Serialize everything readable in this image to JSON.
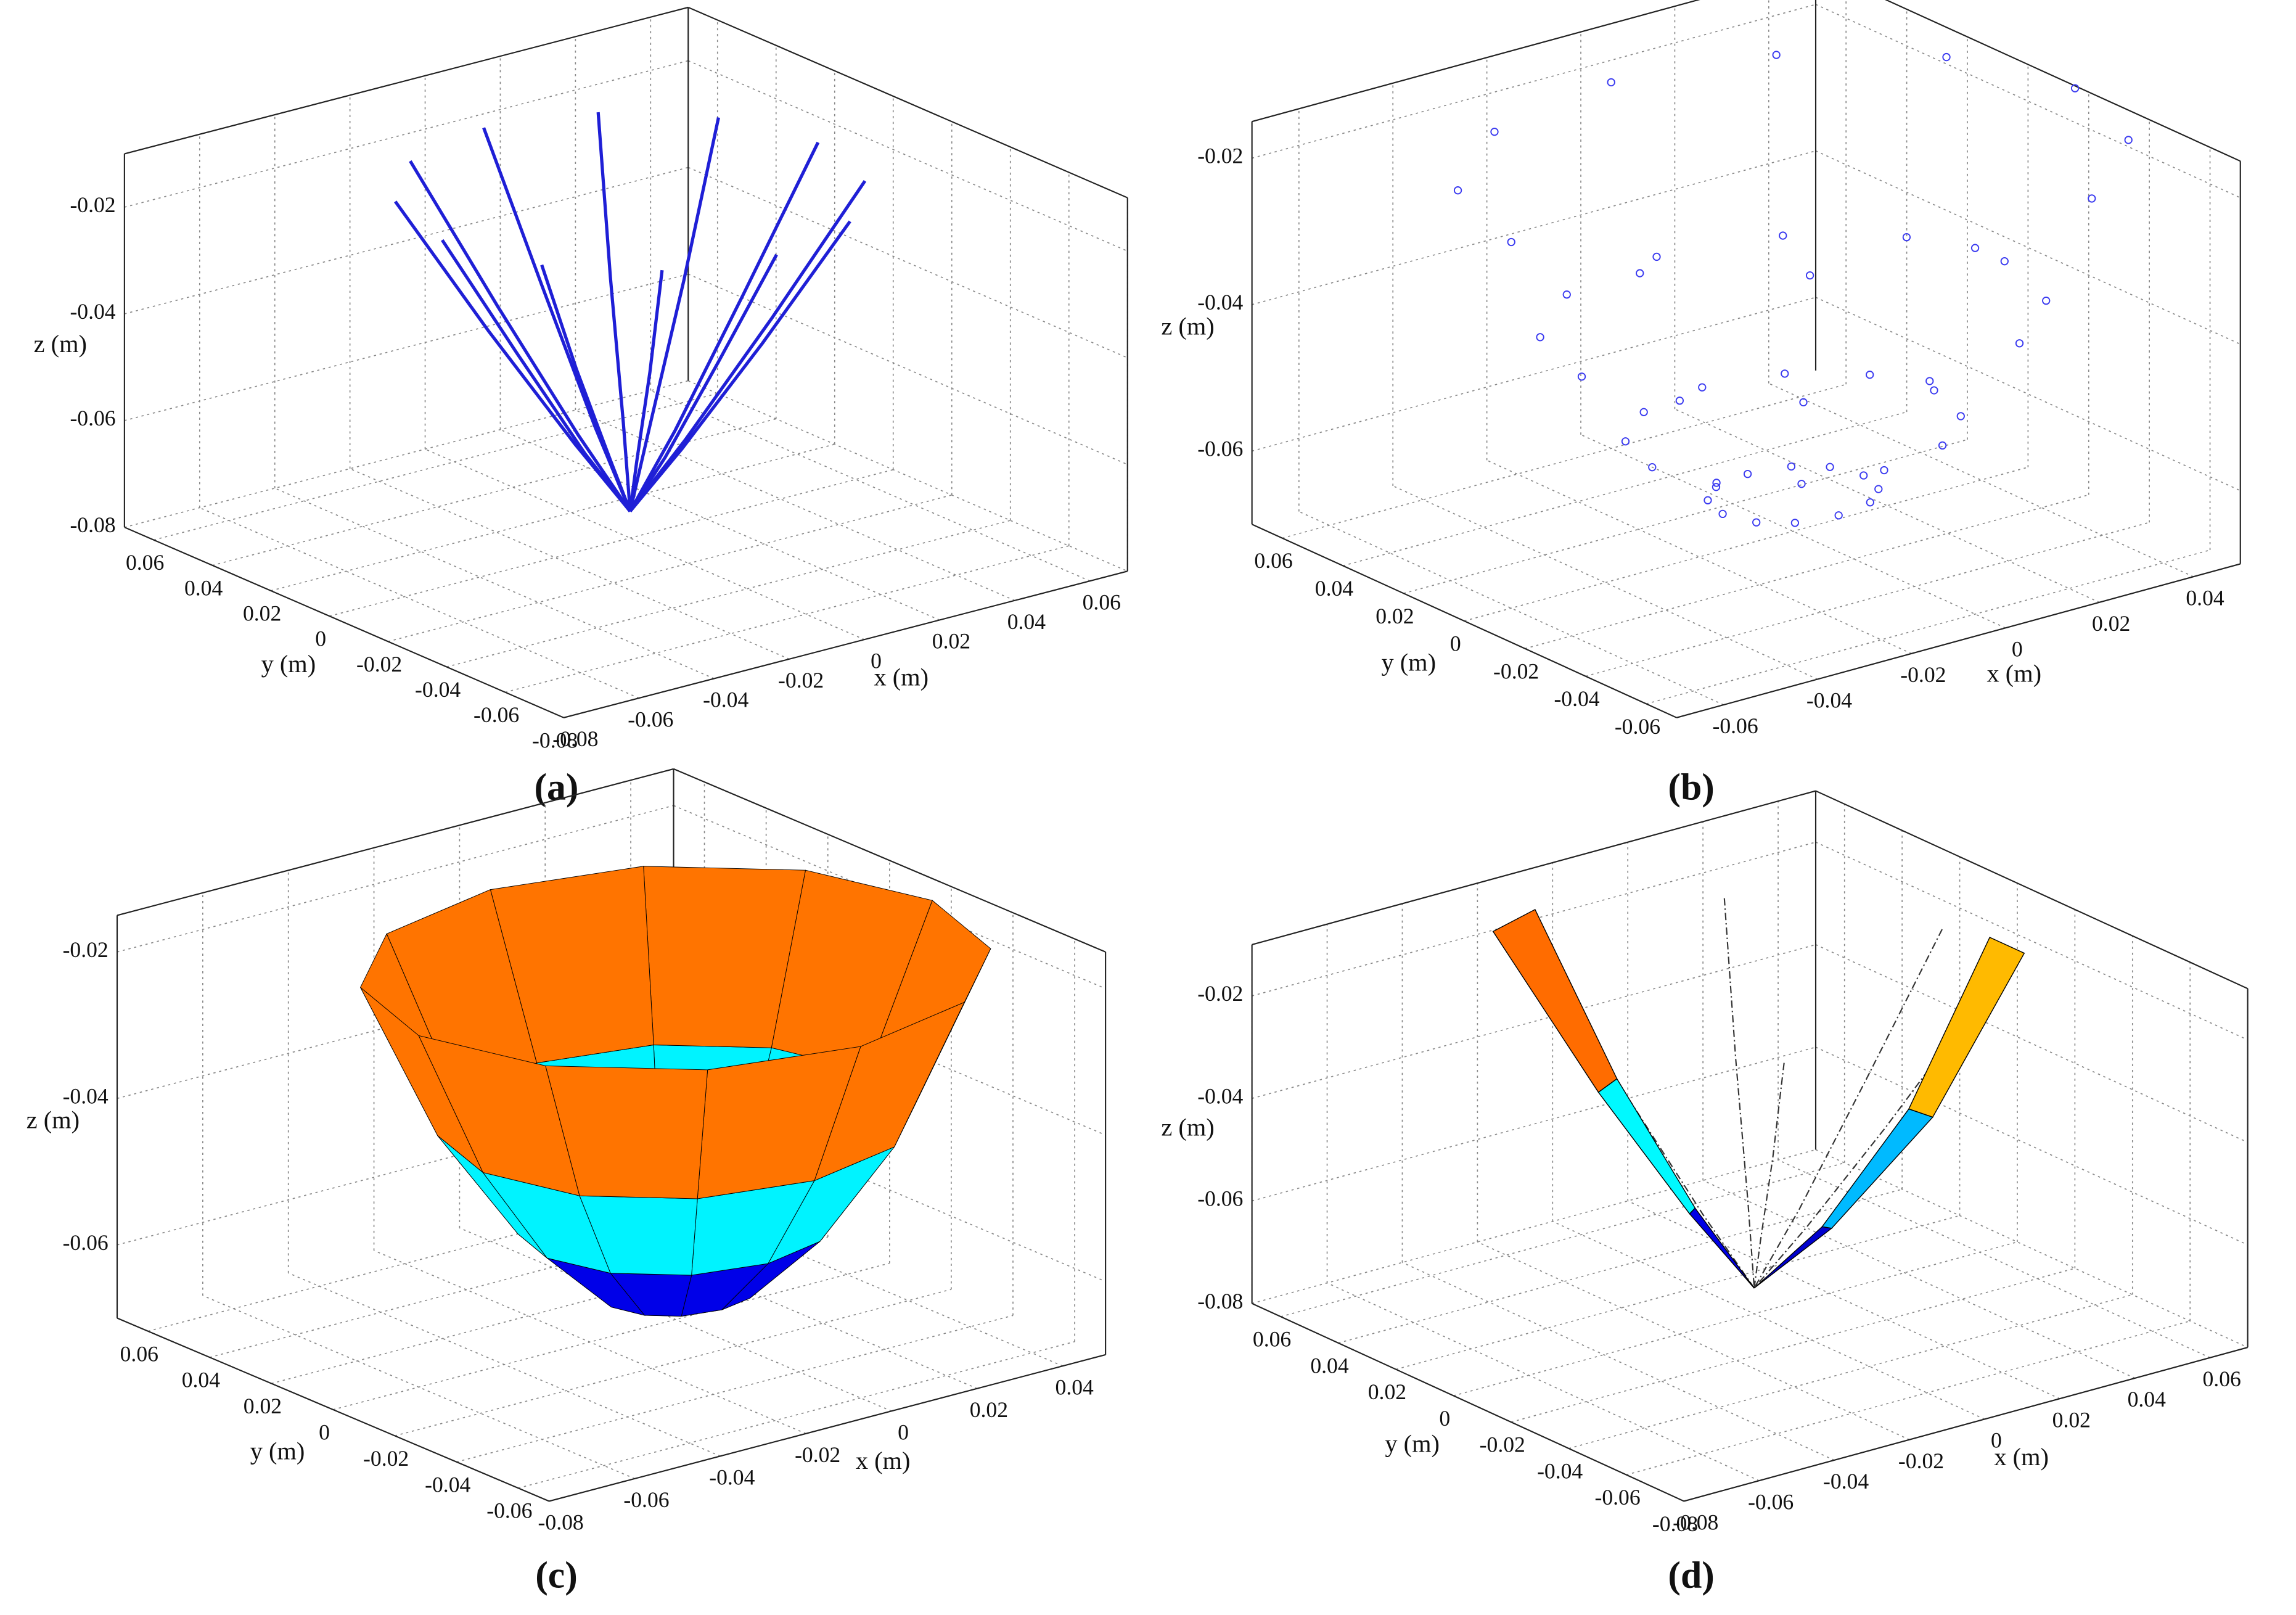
{
  "chart_data": [
    {
      "type": "line3d",
      "panel": "(a)",
      "xlabel": "x (m)",
      "ylabel": "y (m)",
      "zlabel": "z (m)",
      "xlim": [
        -0.08,
        0.07
      ],
      "ylim": [
        -0.08,
        0.07
      ],
      "zlim": [
        -0.08,
        -0.01
      ],
      "xticks": [
        -0.08,
        -0.06,
        -0.04,
        -0.02,
        0,
        0.02,
        0.04,
        0.06
      ],
      "yticks": [
        -0.08,
        -0.06,
        -0.04,
        -0.02,
        0,
        0.02,
        0.04,
        0.06
      ],
      "zticks": [
        -0.08,
        -0.06,
        -0.04,
        -0.02
      ],
      "grid": true,
      "color": "#1f1fd6",
      "series": [
        {
          "x": [
            0.05,
            0.03,
            0.012,
            0
          ],
          "y": [
            0,
            0,
            0,
            0
          ],
          "z": [
            -0.015,
            -0.04,
            -0.062,
            -0.075
          ]
        },
        {
          "x": [
            0.043,
            0.026,
            0.01,
            0
          ],
          "y": [
            0.025,
            0.015,
            0.006,
            0
          ],
          "z": [
            -0.015,
            -0.04,
            -0.062,
            -0.075
          ]
        },
        {
          "x": [
            0.025,
            0.015,
            0.006,
            0
          ],
          "y": [
            0.043,
            0.026,
            0.01,
            0
          ],
          "z": [
            -0.015,
            -0.04,
            -0.062,
            -0.075
          ]
        },
        {
          "x": [
            0,
            0,
            0,
            0
          ],
          "y": [
            0.05,
            0.03,
            0.012,
            0
          ],
          "z": [
            -0.015,
            -0.04,
            -0.062,
            -0.075
          ]
        },
        {
          "x": [
            -0.025,
            -0.015,
            -0.006,
            0
          ],
          "y": [
            0.043,
            0.026,
            0.01,
            0
          ],
          "z": [
            -0.015,
            -0.04,
            -0.062,
            -0.075
          ]
        },
        {
          "x": [
            -0.043,
            -0.026,
            -0.01,
            0
          ],
          "y": [
            0.025,
            0.015,
            0.006,
            0
          ],
          "z": [
            -0.015,
            -0.04,
            -0.062,
            -0.075
          ]
        },
        {
          "x": [
            -0.05,
            -0.03,
            -0.012,
            0
          ],
          "y": [
            0,
            0,
            0,
            0
          ],
          "z": [
            -0.015,
            -0.04,
            -0.062,
            -0.075
          ]
        },
        {
          "x": [
            -0.043,
            -0.026,
            -0.01,
            0
          ],
          "y": [
            -0.025,
            -0.015,
            -0.006,
            0
          ],
          "z": [
            -0.015,
            -0.04,
            -0.062,
            -0.075
          ]
        },
        {
          "x": [
            -0.025,
            -0.015,
            -0.006,
            0
          ],
          "y": [
            -0.043,
            -0.026,
            -0.01,
            0
          ],
          "z": [
            -0.015,
            -0.04,
            -0.062,
            -0.075
          ]
        },
        {
          "x": [
            0,
            0,
            0,
            0
          ],
          "y": [
            -0.05,
            -0.03,
            -0.012,
            0
          ],
          "z": [
            -0.015,
            -0.04,
            -0.062,
            -0.075
          ]
        },
        {
          "x": [
            0.025,
            0.015,
            0.006,
            0
          ],
          "y": [
            -0.043,
            -0.026,
            -0.01,
            0
          ],
          "z": [
            -0.015,
            -0.04,
            -0.062,
            -0.075
          ]
        },
        {
          "x": [
            0.043,
            0.026,
            0.01,
            0
          ],
          "y": [
            -0.025,
            -0.015,
            -0.006,
            0
          ],
          "z": [
            -0.015,
            -0.04,
            -0.062,
            -0.075
          ]
        }
      ]
    },
    {
      "type": "scatter3d",
      "panel": "(b)",
      "xlabel": "x (m)",
      "ylabel": "y (m)",
      "zlabel": "z (m)",
      "xlim": [
        -0.07,
        0.05
      ],
      "ylim": [
        -0.07,
        0.07
      ],
      "zlim": [
        -0.07,
        -0.015
      ],
      "xticks": [
        -0.06,
        -0.04,
        -0.02,
        0,
        0.02,
        0.04
      ],
      "yticks": [
        -0.06,
        -0.04,
        -0.02,
        0,
        0.02,
        0.04,
        0.06
      ],
      "zticks": [
        -0.06,
        -0.04,
        -0.02
      ],
      "grid": true,
      "color": "#3a3af0",
      "series": [
        {
          "x": [
            0.06,
            0.045,
            0.03,
            0.015
          ],
          "y": [
            0,
            0,
            0,
            0
          ],
          "z": [
            -0.02,
            -0.041,
            -0.056,
            -0.065
          ]
        },
        {
          "x": [
            0.052,
            0.039,
            0.026,
            0.013
          ],
          "y": [
            0.03,
            0.023,
            0.015,
            0.008
          ],
          "z": [
            -0.02,
            -0.041,
            -0.056,
            -0.065
          ]
        },
        {
          "x": [
            0.03,
            0.023,
            0.015,
            0.008
          ],
          "y": [
            0.052,
            0.039,
            0.026,
            0.013
          ],
          "z": [
            -0.02,
            -0.041,
            -0.056,
            -0.065
          ]
        },
        {
          "x": [
            0,
            0,
            0,
            0
          ],
          "y": [
            0.06,
            0.045,
            0.03,
            0.015
          ],
          "z": [
            -0.02,
            -0.041,
            -0.056,
            -0.065
          ]
        },
        {
          "x": [
            -0.03,
            -0.023,
            -0.015,
            -0.008
          ],
          "y": [
            0.052,
            0.039,
            0.026,
            0.013
          ],
          "z": [
            -0.02,
            -0.041,
            -0.056,
            -0.065
          ]
        },
        {
          "x": [
            -0.052,
            -0.039,
            -0.026,
            -0.013
          ],
          "y": [
            0.03,
            0.023,
            0.015,
            0.008
          ],
          "z": [
            -0.02,
            -0.041,
            -0.056,
            -0.065
          ]
        },
        {
          "x": [
            -0.06,
            -0.045,
            -0.03,
            -0.015
          ],
          "y": [
            0,
            0,
            0,
            0
          ],
          "z": [
            -0.02,
            -0.041,
            -0.056,
            -0.065
          ]
        },
        {
          "x": [
            -0.052,
            -0.039,
            -0.026,
            -0.013
          ],
          "y": [
            -0.03,
            -0.023,
            -0.015,
            -0.008
          ],
          "z": [
            -0.02,
            -0.041,
            -0.056,
            -0.065
          ]
        },
        {
          "x": [
            -0.03,
            -0.023,
            -0.015,
            -0.008
          ],
          "y": [
            -0.052,
            -0.039,
            -0.026,
            -0.013
          ],
          "z": [
            -0.02,
            -0.041,
            -0.056,
            -0.065
          ]
        },
        {
          "x": [
            0,
            0,
            0,
            0
          ],
          "y": [
            -0.06,
            -0.045,
            -0.03,
            -0.015
          ],
          "z": [
            -0.02,
            -0.041,
            -0.056,
            -0.065
          ]
        },
        {
          "x": [
            0.03,
            0.023,
            0.015,
            0.008
          ],
          "y": [
            -0.052,
            -0.039,
            -0.026,
            -0.013
          ],
          "z": [
            -0.02,
            -0.041,
            -0.056,
            -0.065
          ]
        },
        {
          "x": [
            0.052,
            0.039,
            0.026,
            0.013
          ],
          "y": [
            -0.03,
            -0.023,
            -0.015,
            -0.008
          ],
          "z": [
            -0.02,
            -0.041,
            -0.056,
            -0.065
          ]
        }
      ]
    },
    {
      "type": "surface3d",
      "panel": "(c)",
      "xlabel": "x (m)",
      "ylabel": "y (m)",
      "zlabel": "z (m)",
      "xlim": [
        -0.08,
        0.05
      ],
      "ylim": [
        -0.07,
        0.07
      ],
      "zlim": [
        -0.07,
        -0.015
      ],
      "xticks": [
        -0.08,
        -0.06,
        -0.04,
        -0.02,
        0,
        0.02,
        0.04
      ],
      "yticks": [
        -0.06,
        -0.04,
        -0.02,
        0,
        0.02,
        0.04,
        0.06
      ],
      "zticks": [
        -0.06,
        -0.04,
        -0.02
      ],
      "grid": true,
      "x": [
        [
          0.06,
          0.052,
          0.03,
          0,
          -0.03,
          -0.052,
          -0.06,
          -0.052,
          -0.03,
          0,
          0.03,
          0.052
        ],
        [
          0.045,
          0.039,
          0.023,
          0,
          -0.023,
          -0.039,
          -0.045,
          -0.039,
          -0.023,
          0,
          0.023,
          0.039
        ],
        [
          0.03,
          0.026,
          0.015,
          0,
          -0.015,
          -0.026,
          -0.03,
          -0.026,
          -0.015,
          0,
          0.015,
          0.026
        ],
        [
          0.015,
          0.013,
          0.008,
          0,
          -0.008,
          -0.013,
          -0.015,
          -0.013,
          -0.008,
          0,
          0.008,
          0.013
        ]
      ],
      "y": [
        [
          0,
          0.03,
          0.052,
          0.06,
          0.052,
          0.03,
          0,
          -0.03,
          -0.052,
          -0.06,
          -0.052,
          -0.03
        ],
        [
          0,
          0.023,
          0.039,
          0.045,
          0.039,
          0.023,
          0,
          -0.023,
          -0.039,
          -0.045,
          -0.039,
          -0.023
        ],
        [
          0,
          0.015,
          0.026,
          0.03,
          0.026,
          0.015,
          0,
          -0.015,
          -0.026,
          -0.03,
          -0.026,
          -0.015
        ],
        [
          0,
          0.008,
          0.013,
          0.015,
          0.013,
          0.008,
          0,
          -0.008,
          -0.013,
          -0.015,
          -0.013,
          -0.008
        ]
      ],
      "z": [
        [
          -0.022,
          -0.022,
          -0.022,
          -0.022,
          -0.022,
          -0.022,
          -0.022,
          -0.022,
          -0.022,
          -0.022,
          -0.022,
          -0.022
        ],
        [
          -0.043,
          -0.043,
          -0.043,
          -0.043,
          -0.043,
          -0.043,
          -0.043,
          -0.043,
          -0.043,
          -0.043,
          -0.043,
          -0.043
        ],
        [
          -0.057,
          -0.057,
          -0.057,
          -0.057,
          -0.057,
          -0.057,
          -0.057,
          -0.057,
          -0.057,
          -0.057,
          -0.057,
          -0.057
        ],
        [
          -0.066,
          -0.066,
          -0.066,
          -0.066,
          -0.066,
          -0.066,
          -0.066,
          -0.066,
          -0.066,
          -0.066,
          -0.066,
          -0.066
        ]
      ]
    },
    {
      "type": "ribbon3d",
      "panel": "(d)",
      "xlabel": "x (m)",
      "ylabel": "y (m)",
      "zlabel": "z (m)",
      "xlim": [
        -0.08,
        0.07
      ],
      "ylim": [
        -0.08,
        0.07
      ],
      "zlim": [
        -0.08,
        -0.01
      ],
      "xticks": [
        -0.08,
        -0.06,
        -0.04,
        -0.02,
        0,
        0.02,
        0.04,
        0.06
      ],
      "yticks": [
        -0.08,
        -0.06,
        -0.04,
        -0.02,
        0,
        0.02,
        0.04,
        0.06
      ],
      "zticks": [
        -0.08,
        -0.06,
        -0.04,
        -0.02
      ],
      "grid": true,
      "color": "#333333",
      "series": [
        {
          "x": [
            0.05,
            0.03,
            0.012,
            0
          ],
          "y": [
            0,
            0,
            0,
            0
          ],
          "z": [
            -0.015,
            -0.04,
            -0.062,
            -0.075
          ]
        },
        {
          "x": [
            0.025,
            0.015,
            0.006,
            0
          ],
          "y": [
            0.043,
            0.026,
            0.01,
            0
          ],
          "z": [
            -0.015,
            -0.04,
            -0.062,
            -0.075
          ]
        },
        {
          "x": [
            -0.025,
            -0.015,
            -0.006,
            0
          ],
          "y": [
            0.043,
            0.026,
            0.01,
            0
          ],
          "z": [
            -0.015,
            -0.04,
            -0.062,
            -0.075
          ]
        },
        {
          "x": [
            -0.05,
            -0.03,
            -0.012,
            0
          ],
          "y": [
            0,
            0,
            0,
            0
          ],
          "z": [
            -0.015,
            -0.04,
            -0.062,
            -0.075
          ]
        },
        {
          "x": [
            -0.025,
            -0.015,
            -0.006,
            0
          ],
          "y": [
            -0.043,
            -0.026,
            -0.01,
            0
          ],
          "z": [
            -0.015,
            -0.04,
            -0.062,
            -0.075
          ]
        },
        {
          "x": [
            0.025,
            0.015,
            0.006,
            0
          ],
          "y": [
            -0.043,
            -0.026,
            -0.01,
            0
          ],
          "z": [
            -0.015,
            -0.04,
            -0.062,
            -0.075
          ]
        }
      ],
      "ribbons": [
        {
          "x1": [
            -0.02,
            -0.012,
            -0.005,
            0
          ],
          "y1": [
            0.05,
            0.032,
            0.014,
            0
          ],
          "x2": [
            -0.035,
            -0.02,
            -0.008,
            0
          ],
          "y2": [
            0.045,
            0.028,
            0.012,
            0
          ],
          "z": [
            -0.01,
            -0.04,
            -0.062,
            -0.075
          ]
        },
        {
          "x1": [
            0.055,
            0.035,
            0.015,
            0
          ],
          "y1": [
            -0.01,
            -0.008,
            -0.004,
            0
          ],
          "x2": [
            0.055,
            0.036,
            0.016,
            0
          ],
          "y2": [
            -0.022,
            -0.015,
            -0.006,
            0
          ],
          "z": [
            -0.015,
            -0.045,
            -0.065,
            -0.075
          ]
        }
      ]
    }
  ]
}
